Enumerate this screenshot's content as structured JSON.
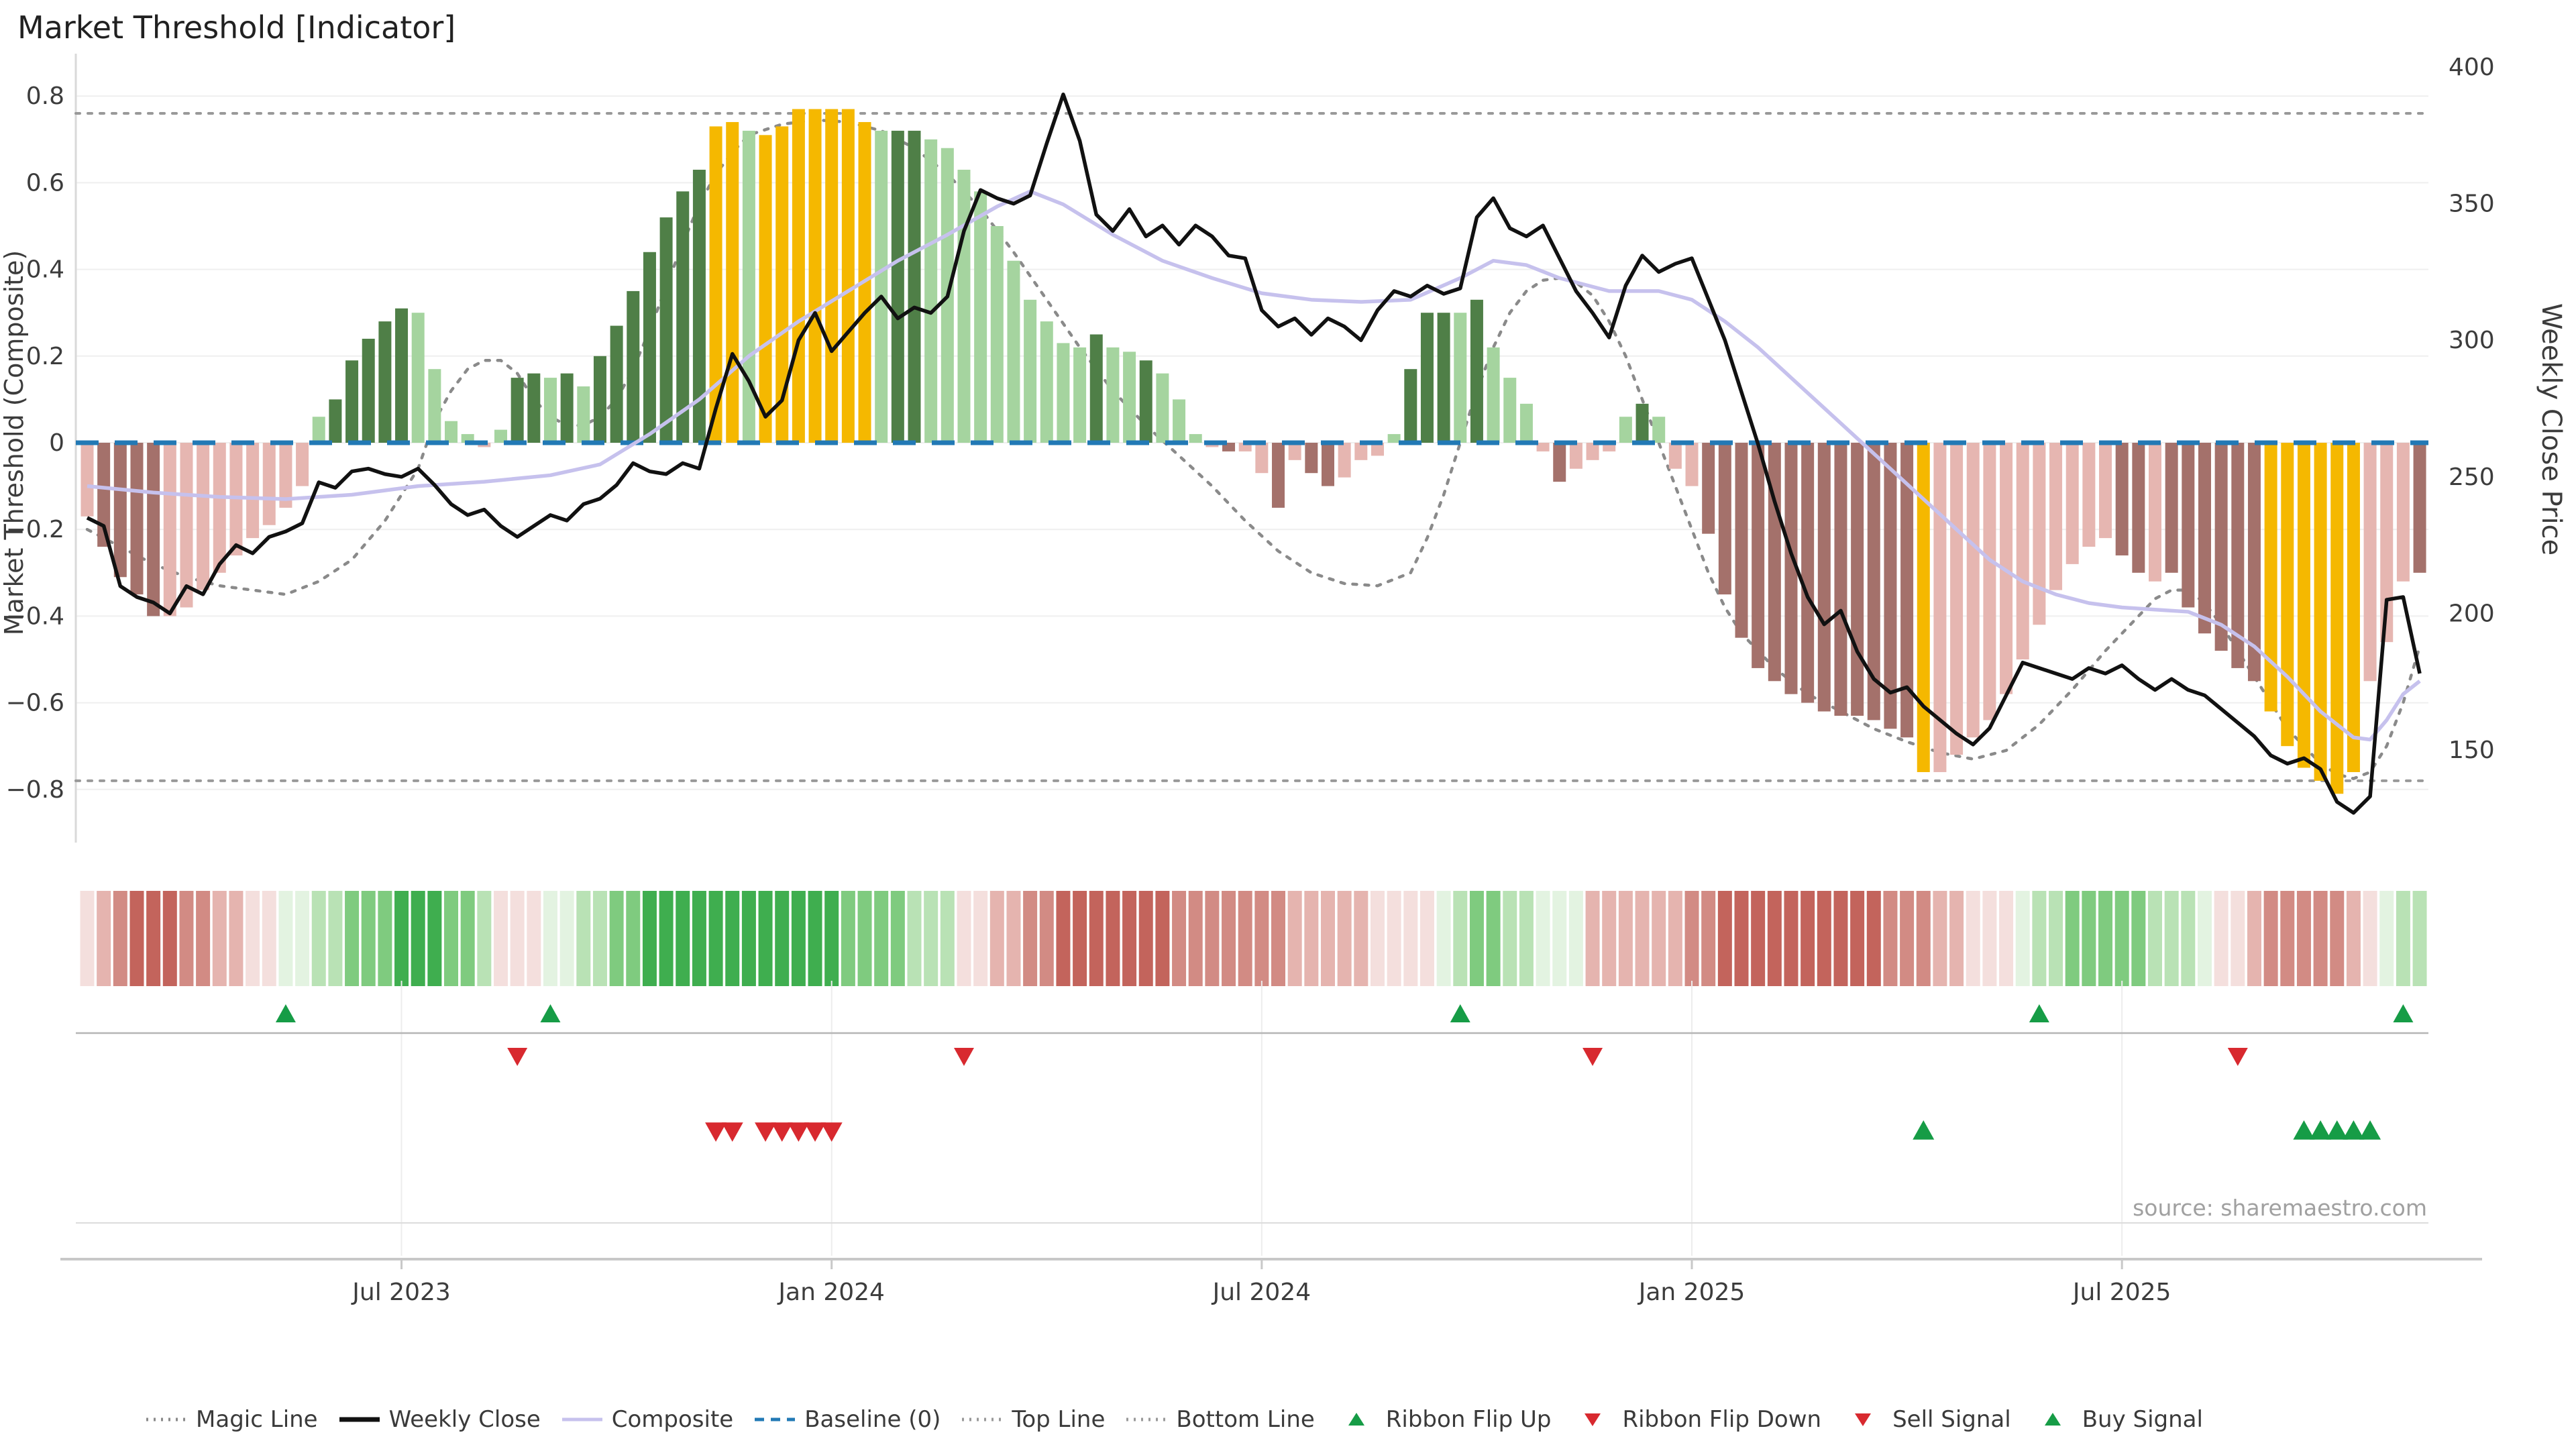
{
  "title": "Market Threshold [Indicator]",
  "source_note": "source: sharemaestro.com",
  "axes": {
    "left_label": "Market Threshold (Composite)",
    "right_label": "Weekly Close Price",
    "left_ticks": [
      0.8,
      0.6,
      0.4,
      0.2,
      0,
      -0.2,
      -0.4,
      -0.6,
      -0.8
    ],
    "left_tick_labels": [
      "0.8",
      "0.6",
      "0.4",
      "0.2",
      "0",
      "−0.2",
      "−0.4",
      "−0.6",
      "−0.8"
    ],
    "right_ticks": [
      400,
      350,
      300,
      250,
      200,
      150
    ],
    "right_tick_labels": [
      "400",
      "350",
      "300",
      "250",
      "200",
      "150"
    ],
    "x_tick_labels": [
      "Jul 2023",
      "Jan 2024",
      "Jul 2024",
      "Jan 2025",
      "Jul 2025"
    ]
  },
  "legend": [
    {
      "label": "Magic Line",
      "marker": "dotted",
      "color": "#8a8a8a"
    },
    {
      "label": "Weekly Close",
      "marker": "thick",
      "color": "#111111"
    },
    {
      "label": "Composite",
      "marker": "line",
      "color": "#c6c1ed"
    },
    {
      "label": "Baseline (0)",
      "marker": "dashed",
      "color": "#2279b5"
    },
    {
      "label": "Top Line",
      "marker": "dotted",
      "color": "#999999"
    },
    {
      "label": "Bottom Line",
      "marker": "dotted",
      "color": "#999999"
    },
    {
      "label": "Ribbon Flip Up",
      "marker": "tri-up",
      "color": "#169c46"
    },
    {
      "label": "Ribbon Flip Down",
      "marker": "tri-down",
      "color": "#d8292f"
    },
    {
      "label": "Sell Signal",
      "marker": "tri-down",
      "color": "#d8292f"
    },
    {
      "label": "Buy Signal",
      "marker": "tri-up",
      "color": "#169c46"
    }
  ],
  "colors": {
    "bar": {
      "lp": "#e6b6b1",
      "dr": "#a4716b",
      "lg": "#a5d49f",
      "dg": "#4f7f47",
      "y": "#f5b800"
    },
    "ribbon": {
      "r1": "#f4dfdd",
      "r2": "#e5b4af",
      "r3": "#d28b84",
      "r4": "#c3645c",
      "g1": "#e3f3e1",
      "g2": "#b9e2b5",
      "g3": "#7fcb7f",
      "g4": "#3fae4f"
    },
    "close_line": "#111111",
    "composite_line": "#c6c1ed",
    "magic_line": "#8a8a8a",
    "baseline": "#2279b5",
    "top_bottom_line": "#999999",
    "signal_up": "#169c46",
    "signal_down": "#d8292f",
    "grid": "#efefef",
    "spine": "#c8c8c8",
    "text": "#3c3c3c",
    "muted": "#a0a0a0"
  },
  "chart_data": {
    "type": "combo (bar + line, weekly)",
    "x_unit": "week index (weekly bars, ~Feb 2023 to Nov 2025)",
    "n_weeks": 142,
    "x_tick_weeks": [
      19,
      45,
      71,
      97,
      123
    ],
    "ylim_left": [
      -0.9,
      0.9
    ],
    "ylim_right": [
      140,
      405
    ],
    "top_line": 0.76,
    "bottom_line": -0.78,
    "baseline": 0,
    "composite_bar_values": [
      -0.17,
      -0.24,
      -0.31,
      -0.35,
      -0.4,
      -0.4,
      -0.38,
      -0.34,
      -0.3,
      -0.26,
      -0.22,
      -0.19,
      -0.15,
      -0.1,
      0.06,
      0.1,
      0.19,
      0.24,
      0.28,
      0.31,
      0.3,
      0.17,
      0.05,
      0.02,
      -0.01,
      0.03,
      0.15,
      0.16,
      0.15,
      0.16,
      0.13,
      0.2,
      0.27,
      0.35,
      0.44,
      0.52,
      0.58,
      0.63,
      0.73,
      0.74,
      0.72,
      0.71,
      0.73,
      0.77,
      0.77,
      0.77,
      0.77,
      0.74,
      0.72,
      0.72,
      0.72,
      0.7,
      0.68,
      0.63,
      0.58,
      0.5,
      0.42,
      0.33,
      0.28,
      0.23,
      0.22,
      0.25,
      0.22,
      0.21,
      0.19,
      0.16,
      0.1,
      0.02,
      -0.01,
      -0.02,
      -0.02,
      -0.07,
      -0.15,
      -0.04,
      -0.07,
      -0.1,
      -0.08,
      -0.04,
      -0.03,
      0.02,
      0.17,
      0.3,
      0.3,
      0.3,
      0.33,
      0.22,
      0.15,
      0.09,
      -0.02,
      -0.09,
      -0.06,
      -0.04,
      -0.02,
      0.06,
      0.09,
      0.06,
      -0.06,
      -0.1,
      -0.21,
      -0.35,
      -0.45,
      -0.52,
      -0.55,
      -0.58,
      -0.6,
      -0.62,
      -0.63,
      -0.63,
      -0.64,
      -0.66,
      -0.68,
      -0.76,
      -0.76,
      -0.72,
      -0.68,
      -0.64,
      -0.58,
      -0.5,
      -0.42,
      -0.34,
      -0.28,
      -0.24,
      -0.22,
      -0.26,
      -0.3,
      -0.32,
      -0.3,
      -0.38,
      -0.44,
      -0.48,
      -0.52,
      -0.55,
      -0.62,
      -0.7,
      -0.75,
      -0.78,
      -0.81,
      -0.76,
      -0.55,
      -0.46,
      -0.32,
      -0.3
    ],
    "composite_bar_colors": [
      "lp",
      "dr",
      "dr",
      "dr",
      "dr",
      "lp",
      "lp",
      "lp",
      "lp",
      "lp",
      "lp",
      "lp",
      "lp",
      "lp",
      "lg",
      "dg",
      "dg",
      "dg",
      "dg",
      "dg",
      "lg",
      "lg",
      "lg",
      "lg",
      "lp",
      "lg",
      "dg",
      "dg",
      "lg",
      "dg",
      "lg",
      "dg",
      "dg",
      "dg",
      "dg",
      "dg",
      "dg",
      "dg",
      "y",
      "y",
      "lg",
      "y",
      "y",
      "y",
      "y",
      "y",
      "y",
      "y",
      "lg",
      "dg",
      "dg",
      "lg",
      "lg",
      "lg",
      "lg",
      "lg",
      "lg",
      "lg",
      "lg",
      "lg",
      "lg",
      "dg",
      "lg",
      "lg",
      "dg",
      "lg",
      "lg",
      "lg",
      "lp",
      "dr",
      "lp",
      "lp",
      "dr",
      "lp",
      "dr",
      "dr",
      "lp",
      "lp",
      "lp",
      "lg",
      "dg",
      "dg",
      "dg",
      "lg",
      "dg",
      "lg",
      "lg",
      "lg",
      "lp",
      "dr",
      "lp",
      "lp",
      "lp",
      "lg",
      "dg",
      "lg",
      "lp",
      "lp",
      "dr",
      "dr",
      "dr",
      "dr",
      "dr",
      "dr",
      "dr",
      "dr",
      "dr",
      "dr",
      "dr",
      "dr",
      "dr",
      "y",
      "lp",
      "lp",
      "lp",
      "lp",
      "lp",
      "lp",
      "lp",
      "lp",
      "lp",
      "lp",
      "lp",
      "dr",
      "dr",
      "lp",
      "dr",
      "dr",
      "dr",
      "dr",
      "dr",
      "dr",
      "y",
      "y",
      "y",
      "y",
      "y",
      "y",
      "lp",
      "lp",
      "lp",
      "dr"
    ],
    "weekly_close": [
      235,
      232,
      210,
      206,
      204,
      200,
      210,
      207,
      218,
      225,
      222,
      228,
      230,
      233,
      248,
      246,
      252,
      253,
      251,
      250,
      253,
      247,
      240,
      236,
      238,
      232,
      228,
      232,
      236,
      234,
      240,
      242,
      247,
      255,
      252,
      251,
      255,
      253,
      275,
      295,
      285,
      272,
      278,
      300,
      310,
      296,
      303,
      310,
      316,
      308,
      312,
      310,
      316,
      340,
      355,
      352,
      350,
      353,
      372,
      390,
      373,
      346,
      340,
      348,
      338,
      342,
      335,
      342,
      338,
      331,
      330,
      311,
      305,
      308,
      302,
      308,
      305,
      300,
      311,
      318,
      316,
      320,
      317,
      319,
      345,
      352,
      341,
      338,
      342,
      330,
      318,
      310,
      301,
      320,
      331,
      325,
      328,
      330,
      315,
      300,
      281,
      262,
      241,
      222,
      206,
      196,
      201,
      186,
      176,
      171,
      173,
      166,
      161,
      156,
      152,
      158,
      170,
      182,
      180,
      178,
      176,
      180,
      178,
      181,
      176,
      172,
      176,
      172,
      170,
      165,
      160,
      155,
      148,
      145,
      147,
      143,
      131,
      127,
      133,
      205,
      206,
      178
    ],
    "composite_line_anchors": [
      [
        0,
        -0.1
      ],
      [
        4,
        -0.115
      ],
      [
        8,
        -0.125
      ],
      [
        12,
        -0.13
      ],
      [
        16,
        -0.12
      ],
      [
        20,
        -0.1
      ],
      [
        24,
        -0.09
      ],
      [
        28,
        -0.075
      ],
      [
        31,
        -0.05
      ],
      [
        34,
        0.02
      ],
      [
        37,
        0.1
      ],
      [
        40,
        0.2
      ],
      [
        43,
        0.28
      ],
      [
        46,
        0.35
      ],
      [
        49,
        0.42
      ],
      [
        52,
        0.48
      ],
      [
        55,
        0.545
      ],
      [
        57,
        0.58
      ],
      [
        59,
        0.55
      ],
      [
        62,
        0.48
      ],
      [
        65,
        0.42
      ],
      [
        68,
        0.38
      ],
      [
        71,
        0.345
      ],
      [
        74,
        0.33
      ],
      [
        77,
        0.325
      ],
      [
        80,
        0.33
      ],
      [
        83,
        0.38
      ],
      [
        85,
        0.42
      ],
      [
        87,
        0.41
      ],
      [
        89,
        0.38
      ],
      [
        92,
        0.35
      ],
      [
        95,
        0.35
      ],
      [
        97,
        0.33
      ],
      [
        99,
        0.28
      ],
      [
        101,
        0.22
      ],
      [
        103,
        0.15
      ],
      [
        105,
        0.08
      ],
      [
        107,
        0.01
      ],
      [
        109,
        -0.06
      ],
      [
        111,
        -0.13
      ],
      [
        113,
        -0.2
      ],
      [
        115,
        -0.27
      ],
      [
        117,
        -0.32
      ],
      [
        119,
        -0.35
      ],
      [
        121,
        -0.37
      ],
      [
        123,
        -0.38
      ],
      [
        125,
        -0.385
      ],
      [
        127,
        -0.39
      ],
      [
        129,
        -0.42
      ],
      [
        131,
        -0.47
      ],
      [
        133,
        -0.54
      ],
      [
        135,
        -0.62
      ],
      [
        137,
        -0.68
      ],
      [
        138,
        -0.685
      ],
      [
        139,
        -0.64
      ],
      [
        140,
        -0.58
      ],
      [
        141,
        -0.55
      ]
    ],
    "magic_line_anchors": [
      [
        0,
        -0.2
      ],
      [
        2,
        -0.24
      ],
      [
        4,
        -0.28
      ],
      [
        6,
        -0.31
      ],
      [
        8,
        -0.33
      ],
      [
        10,
        -0.34
      ],
      [
        12,
        -0.35
      ],
      [
        14,
        -0.32
      ],
      [
        16,
        -0.27
      ],
      [
        18,
        -0.18
      ],
      [
        20,
        -0.06
      ],
      [
        21,
        0.05
      ],
      [
        22,
        0.12
      ],
      [
        23,
        0.17
      ],
      [
        24,
        0.19
      ],
      [
        25,
        0.19
      ],
      [
        26,
        0.16
      ],
      [
        27,
        0.1
      ],
      [
        28,
        0.06
      ],
      [
        29,
        0.04
      ],
      [
        30,
        0.04
      ],
      [
        31,
        0.06
      ],
      [
        32,
        0.1
      ],
      [
        33,
        0.17
      ],
      [
        34,
        0.26
      ],
      [
        35,
        0.36
      ],
      [
        36,
        0.46
      ],
      [
        37,
        0.55
      ],
      [
        38,
        0.62
      ],
      [
        39,
        0.67
      ],
      [
        40,
        0.71
      ],
      [
        42,
        0.735
      ],
      [
        44,
        0.745
      ],
      [
        46,
        0.74
      ],
      [
        48,
        0.72
      ],
      [
        50,
        0.68
      ],
      [
        52,
        0.62
      ],
      [
        54,
        0.54
      ],
      [
        56,
        0.44
      ],
      [
        58,
        0.33
      ],
      [
        60,
        0.22
      ],
      [
        62,
        0.12
      ],
      [
        64,
        0.04
      ],
      [
        66,
        -0.03
      ],
      [
        68,
        -0.1
      ],
      [
        70,
        -0.18
      ],
      [
        72,
        -0.25
      ],
      [
        74,
        -0.3
      ],
      [
        76,
        -0.325
      ],
      [
        78,
        -0.33
      ],
      [
        80,
        -0.3
      ],
      [
        81,
        -0.22
      ],
      [
        82,
        -0.12
      ],
      [
        83,
        0.0
      ],
      [
        84,
        0.12
      ],
      [
        85,
        0.22
      ],
      [
        86,
        0.3
      ],
      [
        87,
        0.35
      ],
      [
        88,
        0.375
      ],
      [
        89,
        0.38
      ],
      [
        90,
        0.37
      ],
      [
        91,
        0.34
      ],
      [
        92,
        0.28
      ],
      [
        93,
        0.2
      ],
      [
        94,
        0.1
      ],
      [
        95,
        0.0
      ],
      [
        96,
        -0.1
      ],
      [
        97,
        -0.2
      ],
      [
        98,
        -0.3
      ],
      [
        99,
        -0.38
      ],
      [
        100,
        -0.44
      ],
      [
        102,
        -0.52
      ],
      [
        104,
        -0.58
      ],
      [
        106,
        -0.62
      ],
      [
        108,
        -0.66
      ],
      [
        110,
        -0.69
      ],
      [
        112,
        -0.715
      ],
      [
        114,
        -0.73
      ],
      [
        116,
        -0.71
      ],
      [
        118,
        -0.65
      ],
      [
        120,
        -0.57
      ],
      [
        122,
        -0.48
      ],
      [
        124,
        -0.4
      ],
      [
        125,
        -0.36
      ],
      [
        126,
        -0.34
      ],
      [
        127,
        -0.34
      ],
      [
        128,
        -0.37
      ],
      [
        129,
        -0.42
      ],
      [
        130,
        -0.48
      ],
      [
        131,
        -0.54
      ],
      [
        132,
        -0.6
      ],
      [
        133,
        -0.66
      ],
      [
        134,
        -0.7
      ],
      [
        135,
        -0.74
      ],
      [
        136,
        -0.765
      ],
      [
        137,
        -0.775
      ],
      [
        138,
        -0.76
      ],
      [
        139,
        -0.7
      ],
      [
        140,
        -0.6
      ],
      [
        141,
        -0.47
      ]
    ],
    "ribbon": [
      "r1",
      "r2",
      "r3",
      "r4",
      "r4",
      "r4",
      "r3",
      "r3",
      "r2",
      "r2",
      "r1",
      "r1",
      "g1",
      "g1",
      "g2",
      "g2",
      "g3",
      "g3",
      "g3",
      "g4",
      "g4",
      "g4",
      "g3",
      "g3",
      "g2",
      "r1",
      "r1",
      "r1",
      "g1",
      "g1",
      "g2",
      "g2",
      "g3",
      "g3",
      "g4",
      "g4",
      "g4",
      "g4",
      "g4",
      "g4",
      "g4",
      "g4",
      "g4",
      "g4",
      "g4",
      "g4",
      "g3",
      "g3",
      "g3",
      "g3",
      "g2",
      "g2",
      "g2",
      "r1",
      "r1",
      "r2",
      "r2",
      "r3",
      "r3",
      "r4",
      "r4",
      "r4",
      "r4",
      "r4",
      "r4",
      "r4",
      "r3",
      "r3",
      "r3",
      "r3",
      "r3",
      "r3",
      "r3",
      "r2",
      "r2",
      "r2",
      "r2",
      "r2",
      "r1",
      "r1",
      "r1",
      "r1",
      "g1",
      "g2",
      "g3",
      "g3",
      "g2",
      "g2",
      "g1",
      "g1",
      "g1",
      "r2",
      "r2",
      "r2",
      "r2",
      "r2",
      "r2",
      "r3",
      "r3",
      "r4",
      "r4",
      "r4",
      "r4",
      "r4",
      "r4",
      "r4",
      "r4",
      "r4",
      "r4",
      "r3",
      "r3",
      "r3",
      "r2",
      "r2",
      "r1",
      "r1",
      "r1",
      "g1",
      "g2",
      "g2",
      "g3",
      "g3",
      "g3",
      "g3",
      "g3",
      "g2",
      "g2",
      "g2",
      "g1",
      "r1",
      "r1",
      "r2",
      "r3",
      "r3",
      "r3",
      "r3",
      "r3",
      "r2",
      "r1",
      "g1",
      "g2",
      "g2"
    ],
    "signals": {
      "ribbon_flip_up_weeks": [
        12,
        28,
        83,
        118,
        140
      ],
      "ribbon_flip_down_weeks": [
        26,
        53,
        91,
        130
      ],
      "sell_signal_weeks": [
        38,
        39,
        41,
        42,
        43,
        44,
        45
      ],
      "buy_signal_weeks": [
        111,
        134,
        135,
        136,
        137,
        138
      ]
    }
  }
}
